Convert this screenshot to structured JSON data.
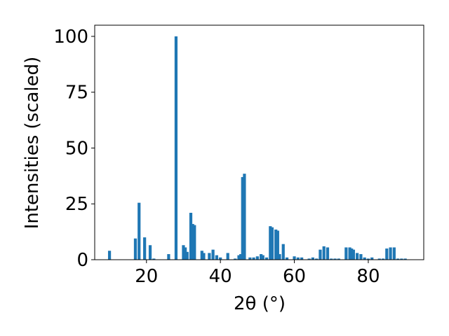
{
  "chart_data": {
    "type": "bar",
    "xlabel": "2θ (°)",
    "ylabel": "Intensities (scaled)",
    "color": "#1f77b4",
    "x": [
      10,
      17,
      18,
      19.5,
      21,
      22,
      26,
      28,
      30,
      30.5,
      31,
      32,
      32.5,
      33,
      35,
      35.5,
      37,
      38,
      39,
      40,
      42,
      44,
      45,
      45.5,
      46,
      46.5,
      48,
      49,
      50,
      51,
      51.5,
      52.5,
      53.5,
      54,
      55,
      55.5,
      56,
      57,
      58,
      60,
      61,
      62,
      64,
      65,
      66,
      67,
      68,
      69,
      70,
      71,
      72,
      74,
      75,
      75.5,
      76,
      77,
      78,
      79,
      80,
      81,
      83,
      84,
      85,
      86,
      87,
      88,
      89,
      90
    ],
    "values": [
      4,
      9.5,
      25.5,
      10,
      6.5,
      0.5,
      2.5,
      100,
      6.5,
      5.5,
      3.5,
      21,
      16,
      15.5,
      4,
      3,
      3,
      4.5,
      2,
      1,
      3,
      0.5,
      2,
      2.5,
      37,
      38.5,
      1,
      1,
      1.5,
      2.5,
      2,
      1,
      15,
      14.5,
      13.5,
      13,
      2.5,
      7,
      1,
      1.5,
      1,
      1,
      0.5,
      1,
      0.5,
      4.5,
      6,
      5.5,
      0.5,
      0.5,
      0.5,
      5.5,
      5.5,
      5,
      4.5,
      3,
      2.5,
      1,
      0.5,
      1,
      0.5,
      0.5,
      5,
      5.5,
      5.5,
      0.5,
      0.5,
      0.5
    ],
    "xlim": [
      6,
      95
    ],
    "ylim": [
      0,
      105
    ],
    "xticks": [
      20,
      40,
      60,
      80
    ],
    "yticks": [
      0,
      25,
      50,
      75,
      100
    ]
  }
}
